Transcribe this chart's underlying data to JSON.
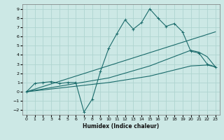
{
  "xlabel": "Humidex (Indice chaleur)",
  "xlim": [
    -0.5,
    23.5
  ],
  "ylim": [
    -2.5,
    9.5
  ],
  "xticks": [
    0,
    1,
    2,
    3,
    4,
    5,
    6,
    7,
    8,
    9,
    10,
    11,
    12,
    13,
    14,
    15,
    16,
    17,
    18,
    19,
    20,
    21,
    22,
    23
  ],
  "yticks": [
    -2,
    -1,
    0,
    1,
    2,
    3,
    4,
    5,
    6,
    7,
    8,
    9
  ],
  "bg_color": "#cce8e5",
  "line_color": "#1a6b6b",
  "grid_color": "#afd4d0",
  "line1_x": [
    0,
    1,
    2,
    3,
    4,
    5,
    6,
    7,
    8,
    9,
    10,
    11,
    12,
    13,
    14,
    15,
    16,
    17,
    18,
    19,
    20,
    21,
    22,
    23
  ],
  "line1_y": [
    0.0,
    0.9,
    1.0,
    1.1,
    0.9,
    1.0,
    1.0,
    -2.2,
    -0.8,
    2.2,
    4.7,
    6.3,
    7.8,
    6.8,
    7.5,
    9.0,
    8.0,
    7.1,
    7.4,
    6.5,
    4.4,
    4.2,
    3.0,
    2.7
  ],
  "line2_x": [
    0,
    23
  ],
  "line2_y": [
    0.0,
    6.5
  ],
  "line3_x": [
    0,
    10,
    15,
    20,
    21,
    22,
    23
  ],
  "line3_y": [
    0.0,
    1.5,
    2.8,
    4.5,
    4.3,
    3.8,
    2.7
  ],
  "line4_x": [
    0,
    10,
    15,
    20,
    22,
    23
  ],
  "line4_y": [
    0.0,
    1.0,
    1.7,
    2.8,
    2.9,
    2.7
  ],
  "figsize": [
    3.2,
    2.0
  ],
  "dpi": 100
}
